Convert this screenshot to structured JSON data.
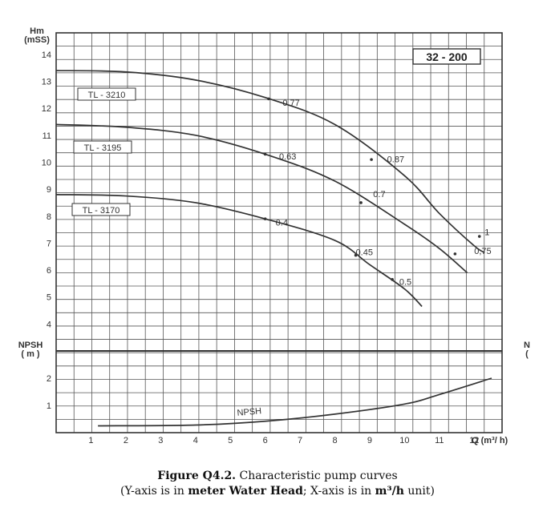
{
  "chart_data": {
    "type": "line",
    "model_label": "32 - 200",
    "xlabel": "Q (m³/ h)",
    "ylabel": "Hm (mSS)",
    "ylabel_lines": [
      "Hm",
      "(mSS)"
    ],
    "y2label_lines": [
      "NPSH",
      "( m )"
    ],
    "right_edge_label_lines": [
      "N",
      "("
    ],
    "x_ticks": [
      "1",
      "2",
      "3",
      "4",
      "5",
      "6",
      "7",
      "8",
      "9",
      "10",
      "11",
      "12"
    ],
    "y_ticks": [
      "14",
      "13",
      "12",
      "11",
      "10",
      "9",
      "8",
      "7",
      "6",
      "5",
      "4"
    ],
    "npsh_ticks": [
      "2",
      "1"
    ],
    "xlim": [
      0,
      12.8
    ],
    "ylim_head": [
      3,
      14.8
    ],
    "ylim_npsh": [
      0,
      3
    ],
    "grid": true,
    "series": [
      {
        "name": "TL - 3210",
        "x": [
          0,
          2,
          4,
          6,
          8,
          10,
          11,
          12,
          12.3
        ],
        "y": [
          13.4,
          13.35,
          13.05,
          12.4,
          11.4,
          9.5,
          8.1,
          6.9,
          6.65
        ]
      },
      {
        "name": "TL - 3195",
        "x": [
          0,
          2,
          4,
          6,
          8,
          10,
          11,
          11.8
        ],
        "y": [
          11.4,
          11.3,
          11.0,
          10.3,
          9.3,
          7.7,
          6.8,
          5.9
        ]
      },
      {
        "name": "TL - 3170",
        "x": [
          0,
          2,
          4,
          6,
          8,
          9,
          10,
          10.5
        ],
        "y": [
          8.8,
          8.75,
          8.5,
          7.9,
          7.1,
          6.2,
          5.3,
          4.65
        ]
      },
      {
        "name": "NPSH",
        "x": [
          1.2,
          4,
          6,
          8,
          10,
          11,
          12.5
        ],
        "y": [
          0.25,
          0.28,
          0.42,
          0.68,
          1.05,
          1.4,
          2.0
        ]
      }
    ],
    "annotations": [
      {
        "text": "0.77",
        "x": 6.5,
        "y": 12.1
      },
      {
        "text": "0.87",
        "x": 9.5,
        "y": 10.0
      },
      {
        "text": "1",
        "x": 12.3,
        "y": 7.3
      },
      {
        "text": "0.63",
        "x": 6.4,
        "y": 10.1
      },
      {
        "text": "0.7",
        "x": 9.1,
        "y": 8.7
      },
      {
        "text": "0,75",
        "x": 12.0,
        "y": 6.6
      },
      {
        "text": "0.4",
        "x": 6.3,
        "y": 7.65
      },
      {
        "text": "0.45",
        "x": 8.6,
        "y": 6.55
      },
      {
        "text": "0.5",
        "x": 9.85,
        "y": 5.45
      }
    ],
    "npsh_label": "NPSH"
  },
  "caption": {
    "bold_part": "Figure Q4.2.",
    "rest": " Characteristic pump curves",
    "line2_pre": "(Y-axis is in ",
    "line2_b1": "meter Water Head",
    "line2_mid": "; X-axis is in ",
    "line2_b2": "m³/h",
    "line2_post": " unit)"
  }
}
